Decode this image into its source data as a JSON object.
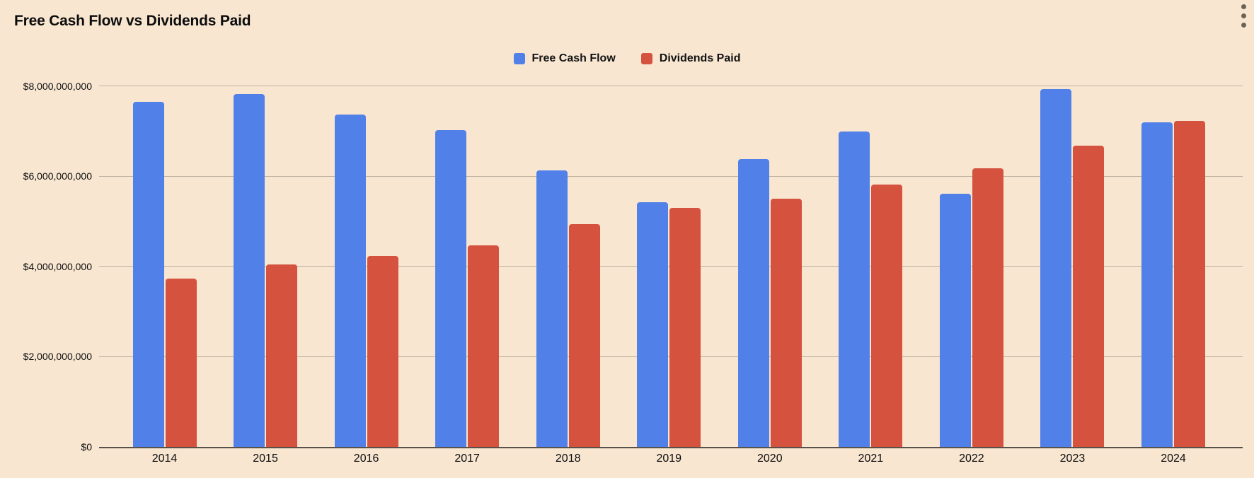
{
  "title": "Free Cash Flow vs Dividends Paid",
  "menu": {
    "icon": "kebab-menu-icon"
  },
  "colors": {
    "background": "#f8e6d1",
    "free_cash_flow": "#5181e8",
    "dividends_paid": "#d5523f",
    "gridline": "#bdb1a1",
    "axis_line": "#57514a",
    "text": "#0d0d0d",
    "menu_dots": "#6d6355"
  },
  "chart_data": {
    "type": "bar",
    "title": "Free Cash Flow vs Dividends Paid",
    "categories": [
      "2014",
      "2015",
      "2016",
      "2017",
      "2018",
      "2019",
      "2020",
      "2021",
      "2022",
      "2023",
      "2024"
    ],
    "series": [
      {
        "name": "Free Cash Flow",
        "color": "#5181e8",
        "values": [
          7647000000,
          7822000000,
          7364000000,
          7025000000,
          6133000000,
          5417000000,
          6373000000,
          6991000000,
          5604000000,
          7924000000,
          7189000000
        ]
      },
      {
        "name": "Dividends Paid",
        "color": "#d5523f",
        "values": [
          3730000000,
          4040000000,
          4227000000,
          4472000000,
          4930000000,
          5304000000,
          5509000000,
          5815000000,
          6172000000,
          6682000000,
          7230000000
        ]
      }
    ],
    "xlabel": "",
    "ylabel": "",
    "ylim": [
      0,
      8000000000
    ],
    "grid": true,
    "legend_position": "top",
    "y_ticks": [
      {
        "value": 0,
        "label": "$0"
      },
      {
        "value": 2000000000,
        "label": "$2,000,000,000"
      },
      {
        "value": 4000000000,
        "label": "$4,000,000,000"
      },
      {
        "value": 6000000000,
        "label": "$6,000,000,000"
      },
      {
        "value": 8000000000,
        "label": "$8,000,000,000"
      }
    ]
  }
}
